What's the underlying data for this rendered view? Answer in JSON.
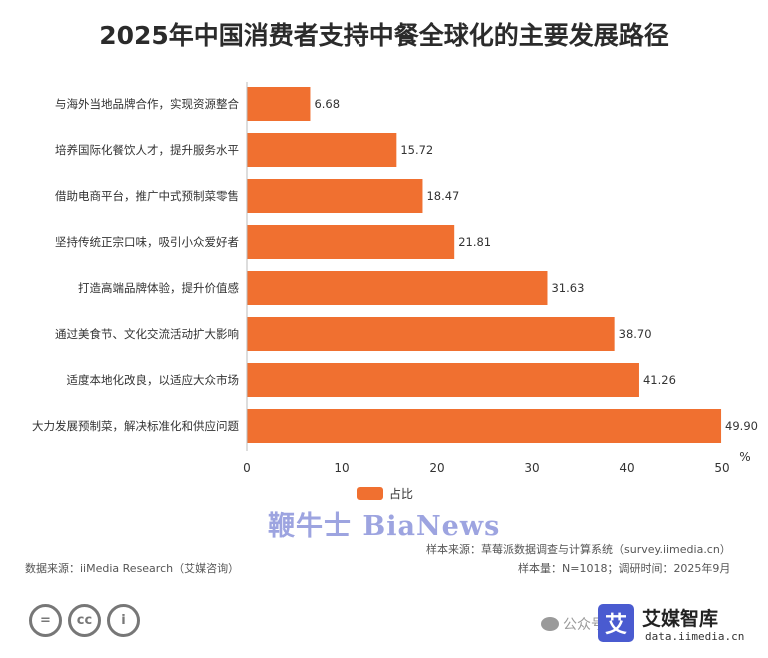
{
  "title": "2025年中国消费者支持中餐全球化的主要发展路径",
  "chart_data": {
    "type": "bar",
    "orientation": "horizontal",
    "categories": [
      "与海外当地品牌合作，实现资源整合",
      "培养国际化餐饮人才，提升服务水平",
      "借助电商平台，推广中式预制菜零售",
      "坚持传统正宗口味，吸引小众爱好者",
      "打造高端品牌体验，提升价值感",
      "通过美食节、文化交流活动扩大影响",
      "适度本地化改良，以适应大众市场",
      "大力发展预制菜，解决标准化和供应问题"
    ],
    "series": [
      {
        "name": "占比",
        "values": [
          6.68,
          15.72,
          18.47,
          21.81,
          31.63,
          38.7,
          41.26,
          49.9
        ]
      }
    ],
    "value_labels": [
      "6.68",
      "15.72",
      "18.47",
      "21.81",
      "31.63",
      "38.70",
      "41.26",
      "49.90"
    ],
    "x_ticks": [
      "0",
      "10",
      "20",
      "30",
      "40",
      "50"
    ],
    "x_unit": "%",
    "xlim": [
      0,
      50
    ],
    "grid": false,
    "legend_position": "bottom",
    "bar_color": "#f07030"
  },
  "watermark": "鞭牛士 BiaNews",
  "footer": {
    "source": "数据来源：iiMedia Research（艾媒咨询）",
    "sample_source": "样本来源：草莓派数据调查与计算系统（survey.iimedia.cn）",
    "sample_size": "样本量：N=1018；调研时间：2025年9月",
    "wechat_text": "公众号",
    "brand_name": "艾媒智库",
    "brand_icon_char": "艾",
    "brand_url": "data.iimedia.cn"
  }
}
